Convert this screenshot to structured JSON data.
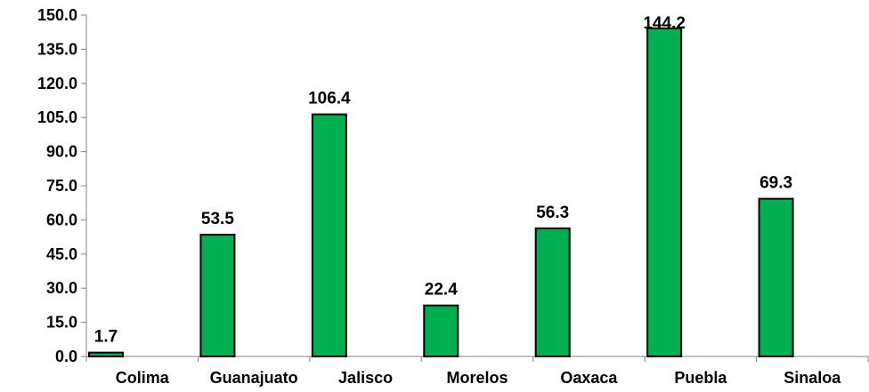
{
  "chart_data": {
    "type": "bar",
    "categories": [
      "Colima",
      "Guanajuato",
      "Jalisco",
      "Morelos",
      "Oaxaca",
      "Puebla",
      "Sinaloa"
    ],
    "values": [
      1.7,
      53.5,
      106.4,
      22.4,
      56.3,
      144.2,
      69.3
    ],
    "value_labels": [
      "1.7",
      "53.5",
      "106.4",
      "22.4",
      "56.3",
      "144.2",
      "69.3"
    ],
    "title": "",
    "xlabel": "",
    "ylabel": "",
    "ylim": [
      0,
      150
    ],
    "yticks": [
      "0.0",
      "15.0",
      "30.0",
      "45.0",
      "60.0",
      "75.0",
      "90.0",
      "105.0",
      "120.0",
      "135.0",
      "150.0"
    ],
    "grid": false,
    "legend": "none",
    "colors": {
      "bar_fill": "#00b050",
      "bar_stroke": "#000000",
      "axis": "#808080"
    }
  }
}
